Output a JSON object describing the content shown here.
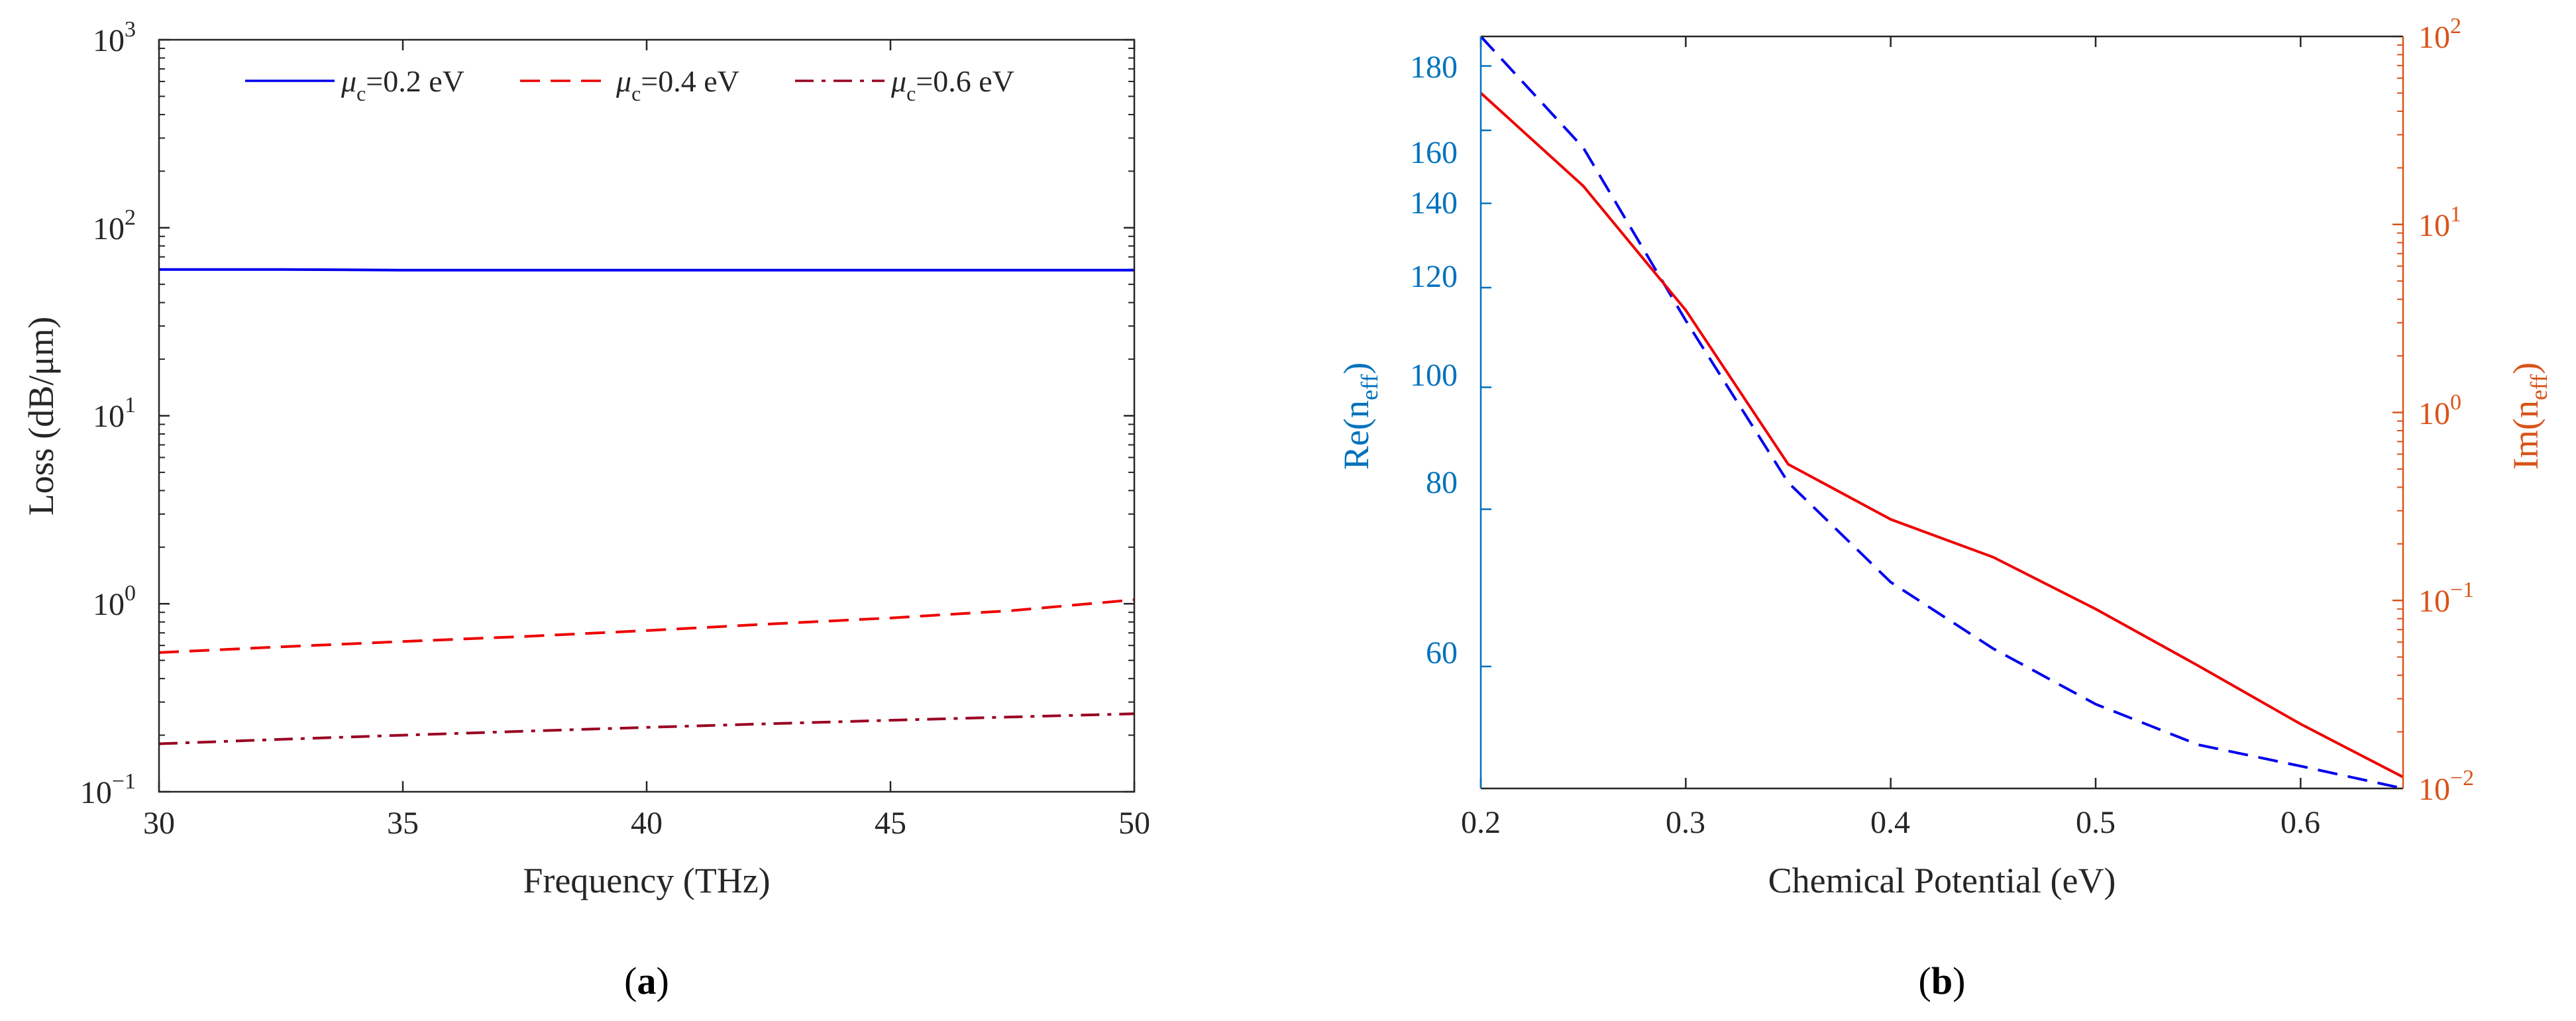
{
  "chart_data": [
    {
      "type": "line",
      "panel_label": "a",
      "caption": {
        "open": "(",
        "letter": "a",
        "close": ")"
      },
      "xlabel": "Frequency (THz)",
      "ylabel": "Loss (dB/μm)",
      "x_scale": "linear",
      "y_scale": "log",
      "xlim": [
        30,
        50
      ],
      "ylim": [
        0.1,
        1000
      ],
      "xticks": [
        30,
        35,
        40,
        45,
        50
      ],
      "xtick_labels": [
        "30",
        "35",
        "40",
        "45",
        "50"
      ],
      "yticks": [
        0.1,
        1,
        10,
        100,
        1000
      ],
      "ytick_labels": [
        {
          "base": "10",
          "exp": "−1"
        },
        {
          "base": "10",
          "exp": "0"
        },
        {
          "base": "10",
          "exp": "1"
        },
        {
          "base": "10",
          "exp": "2"
        },
        {
          "base": "10",
          "exp": "3"
        }
      ],
      "legend_position": "top",
      "x": [
        30,
        32.5,
        35,
        37.5,
        40,
        42.5,
        45,
        47.5,
        50
      ],
      "series": [
        {
          "name": "μc=0.2 eV",
          "mu": "μ",
          "sub": "c",
          "rest": "=0.2 eV",
          "color": "#0000ee",
          "dash": "solid",
          "values": [
            60,
            60,
            59.5,
            59.5,
            59.5,
            59.5,
            59.5,
            59.5,
            59.5
          ]
        },
        {
          "name": "μc=0.4 eV",
          "mu": "μ",
          "sub": "c",
          "rest": "=0.4 eV",
          "color": "#ee0000",
          "dash": "dashed",
          "values": [
            0.55,
            0.59,
            0.63,
            0.67,
            0.72,
            0.78,
            0.84,
            0.92,
            1.05
          ]
        },
        {
          "name": "μc=0.6 eV",
          "mu": "μ",
          "sub": "c",
          "rest": "=0.6 eV",
          "color": "#990022",
          "dash": "dashdot",
          "values": [
            0.18,
            0.19,
            0.2,
            0.21,
            0.22,
            0.23,
            0.24,
            0.25,
            0.26
          ]
        }
      ]
    },
    {
      "type": "line",
      "panel_label": "b",
      "caption": {
        "open": "(",
        "letter": "b",
        "close": ")"
      },
      "xlabel": "Chemical Potential (eV)",
      "x_scale": "linear",
      "xlim": [
        0.2,
        0.65
      ],
      "xticks": [
        0.2,
        0.3,
        0.4,
        0.5,
        0.6
      ],
      "xtick_labels": [
        "0.2",
        "0.3",
        "0.4",
        "0.5",
        "0.6"
      ],
      "left_axis": {
        "label": {
          "base": "Re(n",
          "sub": "eff",
          "close": ")"
        },
        "scale": "log",
        "ylim": [
          48,
          190
        ],
        "color": "#0072bd",
        "ticks": [
          60,
          80,
          100,
          120,
          140,
          160,
          180
        ],
        "tick_labels": [
          "60",
          "80",
          "100",
          "120",
          "140",
          "160",
          "180"
        ]
      },
      "right_axis": {
        "label": {
          "base": "Im(n",
          "sub": "eff",
          "close": ")"
        },
        "scale": "log",
        "ylim": [
          0.01,
          100
        ],
        "color": "#d95319",
        "ticks": [
          0.01,
          0.1,
          1,
          10,
          100
        ],
        "tick_labels": [
          {
            "base": "10",
            "exp": "−2"
          },
          {
            "base": "10",
            "exp": "−1"
          },
          {
            "base": "10",
            "exp": "0"
          },
          {
            "base": "10",
            "exp": "1"
          },
          {
            "base": "10",
            "exp": "2"
          }
        ]
      },
      "series": [
        {
          "name": "Re(neff)",
          "axis": "left",
          "color": "#0000ee",
          "dash": "dashed",
          "x": [
            0.2,
            0.25,
            0.3,
            0.35,
            0.4,
            0.45,
            0.5,
            0.55,
            0.6,
            0.65
          ],
          "values": [
            190,
            155,
            113,
            84,
            70,
            62,
            56,
            52,
            50,
            48
          ]
        },
        {
          "name": "Im(neff)",
          "axis": "right",
          "color": "#ee0000",
          "dash": "solid",
          "x": [
            0.2,
            0.25,
            0.3,
            0.35,
            0.4,
            0.45,
            0.5,
            0.55,
            0.6,
            0.65
          ],
          "values": [
            50,
            16,
            3.5,
            0.53,
            0.27,
            0.17,
            0.09,
            0.045,
            0.022,
            0.0115
          ]
        }
      ]
    }
  ]
}
